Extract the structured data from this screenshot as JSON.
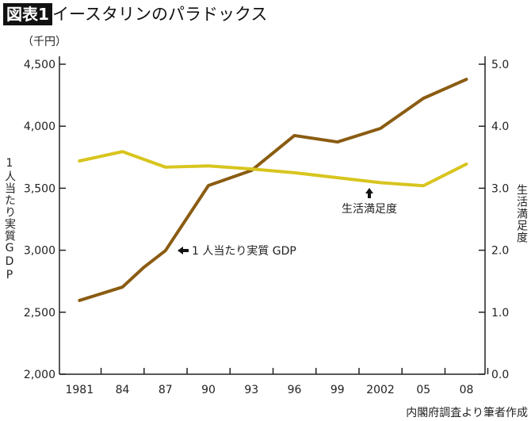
{
  "title_badge": "図表1",
  "title": "イースタリンのパラドックス",
  "source": "内閣府調査より筆者作成",
  "chart_data": {
    "type": "line",
    "left_unit": "（千円）",
    "ylabel_left": "1人当たり実質GDP",
    "ylabel_right": "生活満足度",
    "ylim_left": [
      2000,
      4500
    ],
    "ylim_right": [
      0,
      5
    ],
    "xlim": [
      1979.6,
      2009.3
    ],
    "left_ticks": [
      "2,000",
      "2,500",
      "3,000",
      "3,500",
      "4,000",
      "4,500"
    ],
    "left_tick_values": [
      2000,
      2500,
      3000,
      3500,
      4000,
      4500
    ],
    "right_ticks": [
      "0.0",
      "1.0",
      "2.0",
      "3.0",
      "4.0",
      "5.0"
    ],
    "right_tick_values": [
      0,
      1,
      2,
      3,
      4,
      5
    ],
    "x_ticks": [
      "1981",
      "84",
      "87",
      "90",
      "93",
      "96",
      "99",
      "2002",
      "05",
      "08"
    ],
    "x_tick_values": [
      1981,
      1984,
      1987,
      1990,
      1993,
      1996,
      1999,
      2002,
      2005,
      2008
    ],
    "grid": false,
    "series": [
      {
        "name": "1人当たり実質 GDP",
        "axis": "left",
        "color": "#8a5c12",
        "x": [
          1981,
          1984,
          1985.5,
          1987,
          1990,
          1993,
          1996,
          1999,
          2002,
          2005,
          2008
        ],
        "values": [
          2595,
          2703,
          2863,
          2997,
          3522,
          3643,
          3925,
          3873,
          3982,
          4225,
          4378
        ]
      },
      {
        "name": "生活満足度",
        "axis": "right",
        "color": "#d8c51e",
        "x": [
          1981,
          1984,
          1987,
          1990,
          1993,
          1996,
          1999,
          2002,
          2005,
          2008
        ],
        "values": [
          3.44,
          3.59,
          3.34,
          3.36,
          3.31,
          3.25,
          3.17,
          3.09,
          3.04,
          3.39
        ]
      }
    ],
    "annotations": [
      {
        "text": "1 人当たり実質 GDP",
        "arrow": "left"
      },
      {
        "text": "生活満足度",
        "arrow": "up"
      }
    ]
  }
}
